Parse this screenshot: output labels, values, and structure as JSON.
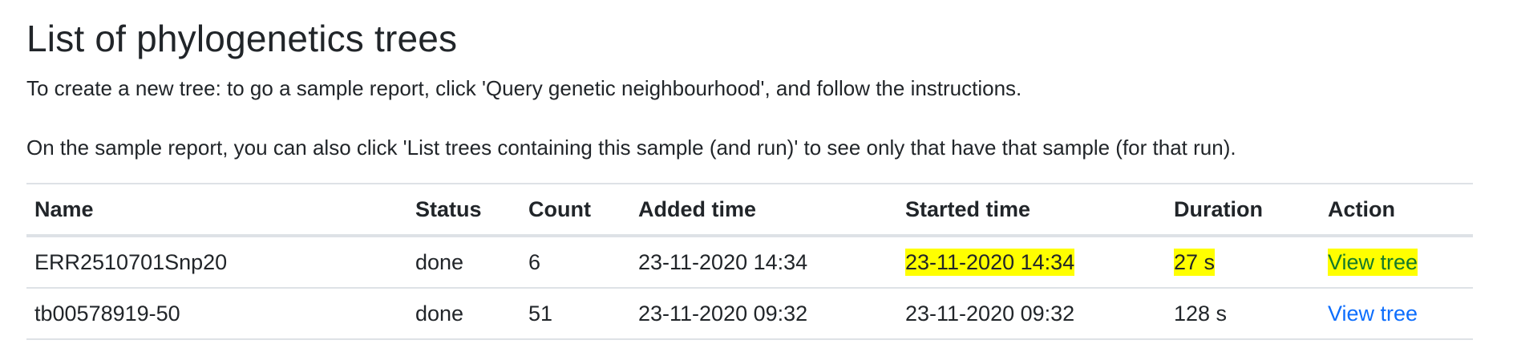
{
  "page": {
    "title": "List of phylogenetics trees",
    "intro_line_1": "To create a new tree: to go a sample report, click 'Query genetic neighbourhood', and follow the instructions.",
    "intro_line_2": "On the sample report, you can also click 'List trees containing this sample (and run)' to see only that have that sample (for that run)."
  },
  "table": {
    "headers": {
      "name": "Name",
      "status": "Status",
      "count": "Count",
      "added": "Added time",
      "started": "Started time",
      "duration": "Duration",
      "action": "Action"
    },
    "rows": [
      {
        "name": "ERR2510701Snp20",
        "status": "done",
        "count": "6",
        "added": "23-11-2020 14:34",
        "started": "23-11-2020 14:34",
        "duration": "27 s",
        "action": "View tree"
      },
      {
        "name": "tb00578919-50",
        "status": "done",
        "count": "51",
        "added": "23-11-2020 09:32",
        "started": "23-11-2020 09:32",
        "duration": "128 s",
        "action": "View tree"
      }
    ]
  },
  "colors": {
    "highlight": "#ffff00",
    "link": "#0d6efd",
    "highlighted_link": "#157a2a",
    "text": "#212529",
    "border": "#dee2e6"
  }
}
